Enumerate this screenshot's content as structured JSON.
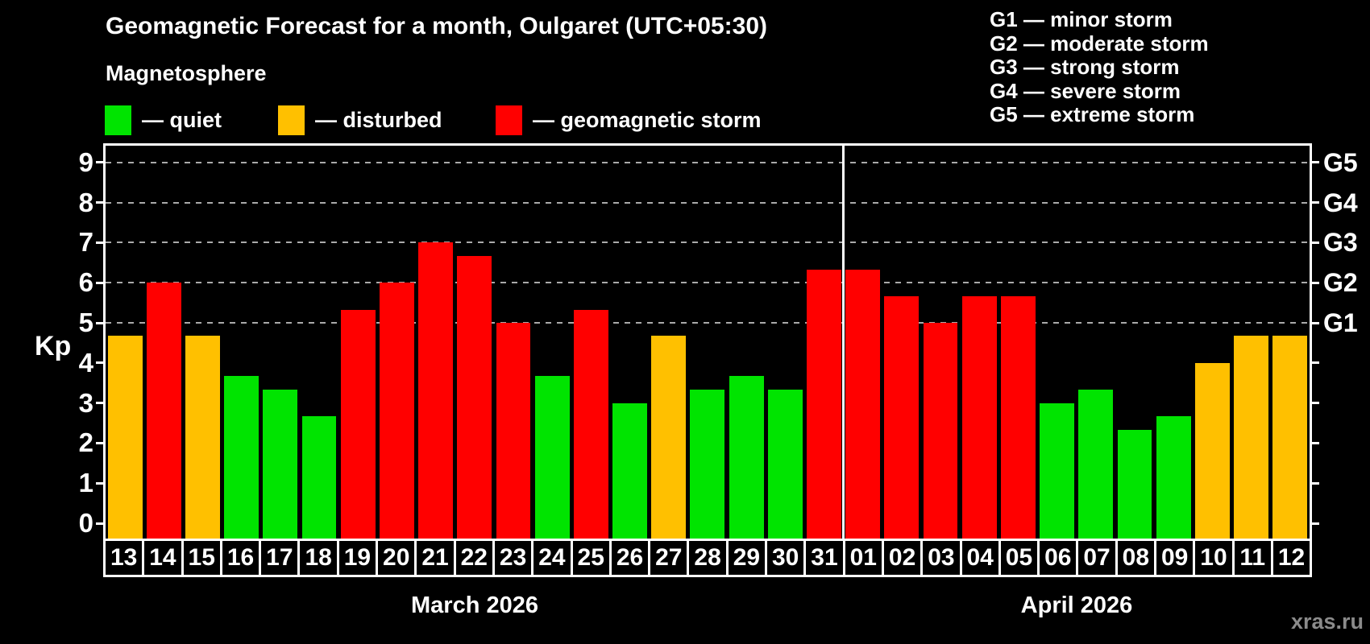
{
  "title": "Geomagnetic Forecast for a month, Oulgaret (UTC+05:30)",
  "subtitle": "Magnetosphere",
  "watermark": "xras.ru",
  "legend": {
    "items": [
      {
        "key": "quiet",
        "label": "— quiet",
        "color": "#00e400"
      },
      {
        "key": "disturbed",
        "label": "— disturbed",
        "color": "#ffc000"
      },
      {
        "key": "storm",
        "label": "— geomagnetic storm",
        "color": "#ff0000"
      }
    ]
  },
  "storm_scale_legend": [
    "G1 — minor storm",
    "G2 — moderate storm",
    "G3 — strong storm",
    "G4 — severe storm",
    "G5 — extreme storm"
  ],
  "chart_data": {
    "type": "bar",
    "title": "Geomagnetic Forecast for a month, Oulgaret (UTC+05:30)",
    "xlabel": "",
    "ylabel": "Kp",
    "ylim": [
      0,
      9
    ],
    "yticks": [
      0,
      1,
      2,
      3,
      4,
      5,
      6,
      7,
      8,
      9
    ],
    "grid": "horizontal dashed gray lines at Kp 5-9 only",
    "legend_position": "top-left",
    "colors": {
      "quiet": "#00e400",
      "disturbed": "#ffc000",
      "storm": "#ff0000"
    },
    "storm_levels": [
      {
        "kp": 5,
        "label": "G1"
      },
      {
        "kp": 6,
        "label": "G2"
      },
      {
        "kp": 7,
        "label": "G3"
      },
      {
        "kp": 8,
        "label": "G4"
      },
      {
        "kp": 9,
        "label": "G5"
      }
    ],
    "months": [
      {
        "label": "March 2026",
        "days": 19
      },
      {
        "label": "April 2026",
        "days": 12
      }
    ],
    "bars": [
      {
        "date": "13",
        "month": "March 2026",
        "kp": 4.67,
        "status": "disturbed"
      },
      {
        "date": "14",
        "month": "March 2026",
        "kp": 6.0,
        "status": "storm"
      },
      {
        "date": "15",
        "month": "March 2026",
        "kp": 4.67,
        "status": "disturbed"
      },
      {
        "date": "16",
        "month": "March 2026",
        "kp": 3.67,
        "status": "quiet"
      },
      {
        "date": "17",
        "month": "March 2026",
        "kp": 3.33,
        "status": "quiet"
      },
      {
        "date": "18",
        "month": "March 2026",
        "kp": 2.67,
        "status": "quiet"
      },
      {
        "date": "19",
        "month": "March 2026",
        "kp": 5.33,
        "status": "storm"
      },
      {
        "date": "20",
        "month": "March 2026",
        "kp": 6.0,
        "status": "storm"
      },
      {
        "date": "21",
        "month": "March 2026",
        "kp": 7.0,
        "status": "storm"
      },
      {
        "date": "22",
        "month": "March 2026",
        "kp": 6.67,
        "status": "storm"
      },
      {
        "date": "23",
        "month": "March 2026",
        "kp": 5.0,
        "status": "storm"
      },
      {
        "date": "24",
        "month": "March 2026",
        "kp": 3.67,
        "status": "quiet"
      },
      {
        "date": "25",
        "month": "March 2026",
        "kp": 5.33,
        "status": "storm"
      },
      {
        "date": "26",
        "month": "March 2026",
        "kp": 3.0,
        "status": "quiet"
      },
      {
        "date": "27",
        "month": "March 2026",
        "kp": 4.67,
        "status": "disturbed"
      },
      {
        "date": "28",
        "month": "March 2026",
        "kp": 3.33,
        "status": "quiet"
      },
      {
        "date": "29",
        "month": "March 2026",
        "kp": 3.67,
        "status": "quiet"
      },
      {
        "date": "30",
        "month": "March 2026",
        "kp": 3.33,
        "status": "quiet"
      },
      {
        "date": "31",
        "month": "March 2026",
        "kp": 6.33,
        "status": "storm"
      },
      {
        "date": "01",
        "month": "April 2026",
        "kp": 6.33,
        "status": "storm"
      },
      {
        "date": "02",
        "month": "April 2026",
        "kp": 5.67,
        "status": "storm"
      },
      {
        "date": "03",
        "month": "April 2026",
        "kp": 5.0,
        "status": "storm"
      },
      {
        "date": "04",
        "month": "April 2026",
        "kp": 5.67,
        "status": "storm"
      },
      {
        "date": "05",
        "month": "April 2026",
        "kp": 5.67,
        "status": "storm"
      },
      {
        "date": "06",
        "month": "April 2026",
        "kp": 3.0,
        "status": "quiet"
      },
      {
        "date": "07",
        "month": "April 2026",
        "kp": 3.33,
        "status": "quiet"
      },
      {
        "date": "08",
        "month": "April 2026",
        "kp": 2.33,
        "status": "quiet"
      },
      {
        "date": "09",
        "month": "April 2026",
        "kp": 2.67,
        "status": "quiet"
      },
      {
        "date": "10",
        "month": "April 2026",
        "kp": 4.0,
        "status": "disturbed"
      },
      {
        "date": "11",
        "month": "April 2026",
        "kp": 4.67,
        "status": "disturbed"
      },
      {
        "date": "12",
        "month": "April 2026",
        "kp": 4.67,
        "status": "disturbed"
      }
    ]
  }
}
